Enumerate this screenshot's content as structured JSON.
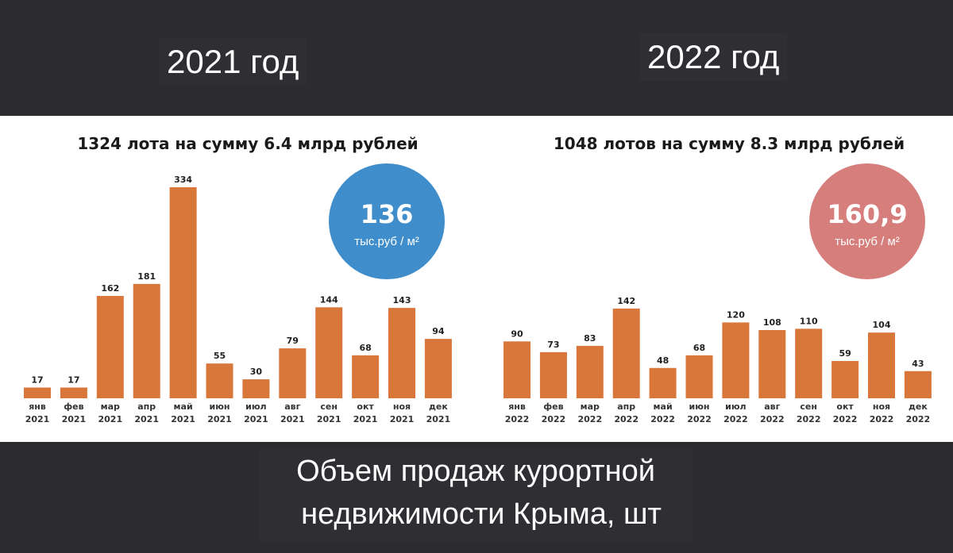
{
  "header": {
    "left_year": "2021 год",
    "right_year": "2022 год"
  },
  "caption": {
    "line1": "Объем продаж курортной",
    "line2": "недвижимости Крыма, шт"
  },
  "colors": {
    "bar": "#d9763a",
    "badge_2021": "#3f8ecb",
    "badge_2022": "#d67e7c",
    "background_dark": "#2c2b30"
  },
  "chart_data": [
    {
      "type": "bar",
      "title": "1324 лота на сумму 6.4 млрд рублей",
      "categories": [
        [
          "янв",
          "2021"
        ],
        [
          "фев",
          "2021"
        ],
        [
          "мар",
          "2021"
        ],
        [
          "апр",
          "2021"
        ],
        [
          "май",
          "2021"
        ],
        [
          "июн",
          "2021"
        ],
        [
          "июл",
          "2021"
        ],
        [
          "авг",
          "2021"
        ],
        [
          "сен",
          "2021"
        ],
        [
          "окт",
          "2021"
        ],
        [
          "ноя",
          "2021"
        ],
        [
          "дек",
          "2021"
        ]
      ],
      "values": [
        17,
        17,
        162,
        181,
        334,
        55,
        30,
        79,
        144,
        68,
        143,
        94
      ],
      "ylim": [
        0,
        334
      ],
      "grid": false,
      "badge": {
        "value": "136",
        "unit": "тыс.руб / м²"
      }
    },
    {
      "type": "bar",
      "title": "1048 лотов на сумму 8.3 млрд рублей",
      "categories": [
        [
          "янв",
          "2022"
        ],
        [
          "фев",
          "2022"
        ],
        [
          "мар",
          "2022"
        ],
        [
          "апр",
          "2022"
        ],
        [
          "май",
          "2022"
        ],
        [
          "июн",
          "2022"
        ],
        [
          "июл",
          "2022"
        ],
        [
          "авг",
          "2022"
        ],
        [
          "сен",
          "2022"
        ],
        [
          "окт",
          "2022"
        ],
        [
          "ноя",
          "2022"
        ],
        [
          "дек",
          "2022"
        ]
      ],
      "values": [
        90,
        73,
        83,
        142,
        48,
        68,
        120,
        108,
        110,
        59,
        104,
        43
      ],
      "ylim": [
        0,
        334
      ],
      "grid": false,
      "badge": {
        "value": "160,9",
        "unit": "тыс.руб / м²"
      }
    }
  ]
}
